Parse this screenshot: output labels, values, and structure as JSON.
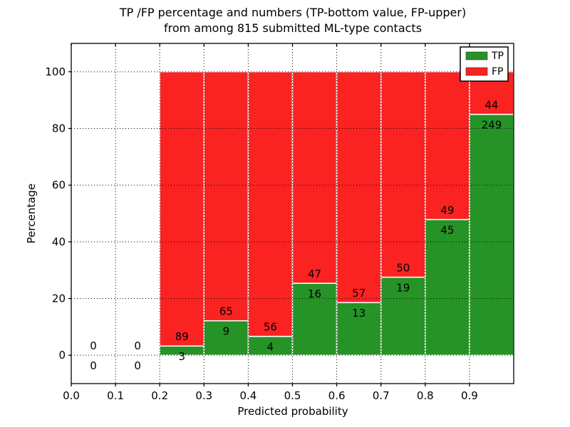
{
  "chart_data": {
    "type": "bar",
    "stacked": true,
    "title_line1": "TP /FP percentage and numbers (TP-bottom value, FP-upper)",
    "title_line2": "from among 815 submitted ML-type contacts",
    "xlabel": "Predicted probability",
    "ylabel": "Percentage",
    "xlim": [
      0.0,
      1.0
    ],
    "ylim": [
      -10,
      110
    ],
    "grid": "dotted",
    "xticks": [
      {
        "value": 0.0,
        "label": "0.0"
      },
      {
        "value": 0.1,
        "label": "0.1"
      },
      {
        "value": 0.2,
        "label": "0.2"
      },
      {
        "value": 0.3,
        "label": "0.3"
      },
      {
        "value": 0.4,
        "label": "0.4"
      },
      {
        "value": 0.5,
        "label": "0.5"
      },
      {
        "value": 0.6,
        "label": "0.6"
      },
      {
        "value": 0.7,
        "label": "0.7"
      },
      {
        "value": 0.8,
        "label": "0.8"
      },
      {
        "value": 0.9,
        "label": "0.9"
      }
    ],
    "yticks": [
      {
        "value": 0,
        "label": "0"
      },
      {
        "value": 20,
        "label": "20"
      },
      {
        "value": 40,
        "label": "40"
      },
      {
        "value": 60,
        "label": "60"
      },
      {
        "value": 80,
        "label": "80"
      },
      {
        "value": 100,
        "label": "100"
      }
    ],
    "colors": {
      "tp": "#269326",
      "fp": "#fb2222",
      "text": "#000000",
      "bar_edge": "#ffffff"
    },
    "legend": {
      "position": "upper right",
      "entries": [
        {
          "label": "TP",
          "color": "#269326"
        },
        {
          "label": "FP",
          "color": "#fb2222"
        }
      ]
    },
    "bins": [
      {
        "range": [
          0.0,
          0.1
        ],
        "tp": 0,
        "fp": 0
      },
      {
        "range": [
          0.1,
          0.2
        ],
        "tp": 0,
        "fp": 0
      },
      {
        "range": [
          0.2,
          0.3
        ],
        "tp": 3,
        "fp": 89
      },
      {
        "range": [
          0.3,
          0.4
        ],
        "tp": 9,
        "fp": 65
      },
      {
        "range": [
          0.4,
          0.5
        ],
        "tp": 4,
        "fp": 56
      },
      {
        "range": [
          0.5,
          0.6
        ],
        "tp": 16,
        "fp": 47
      },
      {
        "range": [
          0.6,
          0.7
        ],
        "tp": 13,
        "fp": 57
      },
      {
        "range": [
          0.7,
          0.8
        ],
        "tp": 19,
        "fp": 50
      },
      {
        "range": [
          0.8,
          0.9
        ],
        "tp": 45,
        "fp": 49
      },
      {
        "range": [
          0.9,
          1.0
        ],
        "tp": 249,
        "fp": 44
      }
    ]
  }
}
